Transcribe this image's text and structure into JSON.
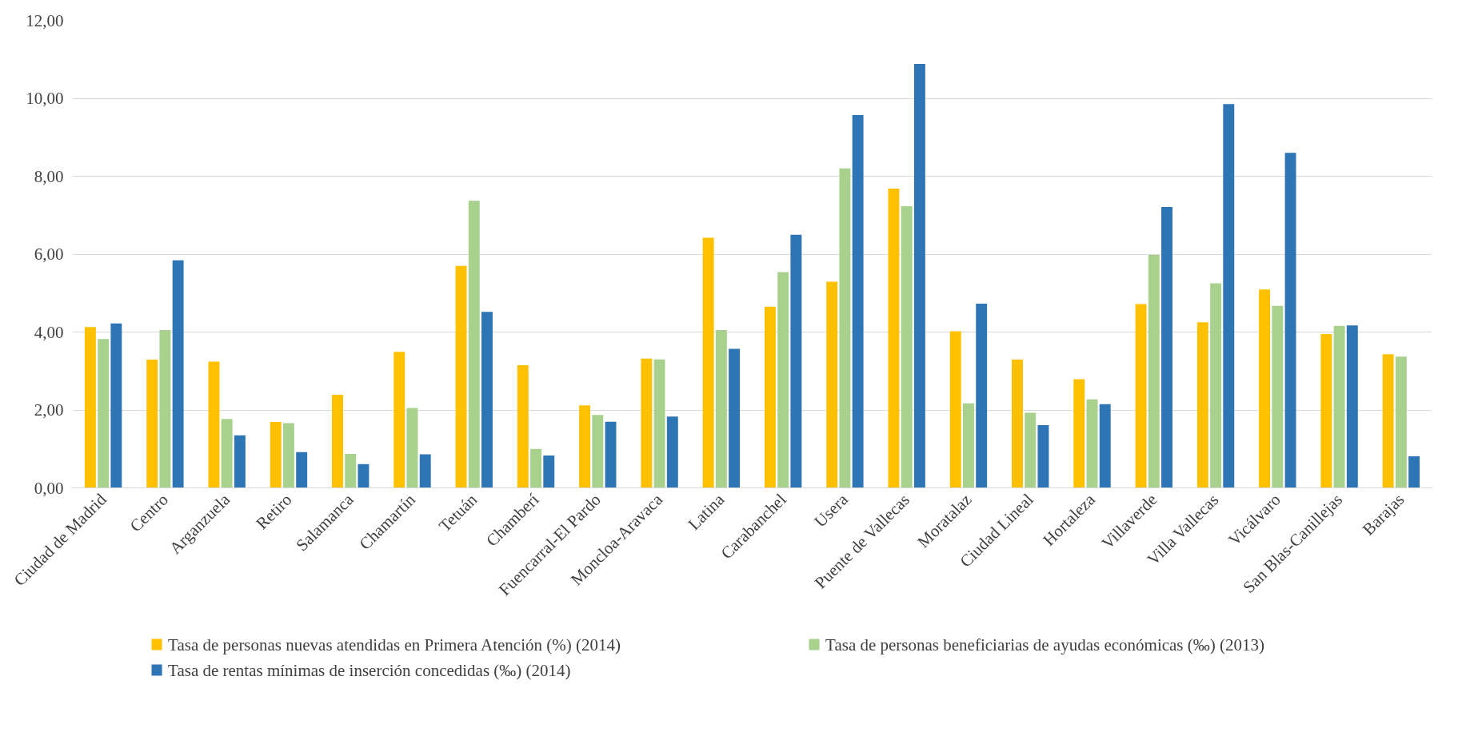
{
  "chart_data": {
    "type": "bar",
    "categories": [
      "Ciudad de Madrid",
      "Centro",
      "Arganzuela",
      "Retiro",
      "Salamanca",
      "Chamartín",
      "Tetuán",
      "Chamberí",
      "Fuencarral-El Pardo",
      "Moncloa-Aravaca",
      "Latina",
      "Carabanchel",
      "Usera",
      "Puente de Vallecas",
      "Moratalaz",
      "Ciudad Lineal",
      "Hortaleza",
      "Villaverde",
      "Villa Vallecas",
      "Vicálvaro",
      "San Blas-Canillejas",
      "Barajas"
    ],
    "series": [
      {
        "name": "Tasa de personas nuevas atendidas en Primera Atención (%) (2014)",
        "color": "#ffc000",
        "values": [
          4.13,
          3.29,
          3.24,
          1.69,
          2.39,
          3.49,
          5.7,
          3.15,
          2.12,
          3.32,
          6.42,
          4.65,
          5.29,
          7.68,
          4.02,
          3.29,
          2.79,
          4.72,
          4.25,
          5.09,
          3.95,
          3.43
        ]
      },
      {
        "name": "Tasa de personas beneficiarias de ayudas económicas (‰) (2013)",
        "color": "#a9d18e",
        "values": [
          3.82,
          4.05,
          1.77,
          1.66,
          0.87,
          2.05,
          7.37,
          1.0,
          1.87,
          3.3,
          4.05,
          5.54,
          8.2,
          7.23,
          2.17,
          1.93,
          2.27,
          5.98,
          5.25,
          4.67,
          4.16,
          3.37
        ]
      },
      {
        "name": "Tasa de rentas mínimas de inserción concedidas (‰) (2014)",
        "color": "#2e75b6",
        "values": [
          4.22,
          5.84,
          1.35,
          0.92,
          0.61,
          0.86,
          4.52,
          0.83,
          1.7,
          1.83,
          3.57,
          6.5,
          9.57,
          10.88,
          4.73,
          1.61,
          2.15,
          7.21,
          9.85,
          8.6,
          4.17,
          0.81
        ]
      }
    ],
    "ylim": [
      0,
      12
    ],
    "yticks": [
      {
        "value": 0,
        "label": "0,00"
      },
      {
        "value": 2,
        "label": "2,00"
      },
      {
        "value": 4,
        "label": "4,00"
      },
      {
        "value": 6,
        "label": "6,00"
      },
      {
        "value": 8,
        "label": "8,00"
      },
      {
        "value": 10,
        "label": "10,00"
      },
      {
        "value": 12,
        "label": "12,00"
      }
    ],
    "grid": "y",
    "legend": "bottom"
  }
}
